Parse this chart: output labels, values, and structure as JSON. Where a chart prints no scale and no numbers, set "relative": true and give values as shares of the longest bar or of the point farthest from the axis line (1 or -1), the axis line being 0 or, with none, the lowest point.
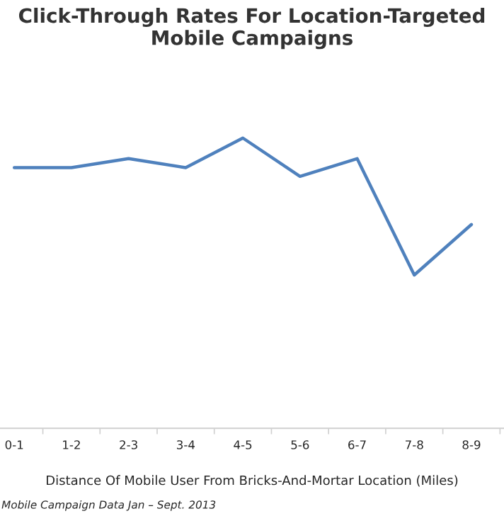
{
  "chart_data": {
    "type": "line",
    "title": "Click-Through Rates For Location-Targeted\nMobile Campaigns",
    "xlabel": "Distance Of Mobile User From Bricks-And-Mortar Location (Miles)",
    "categories": [
      "0-1",
      "1-2",
      "2-3",
      "3-4",
      "4-5",
      "5-6",
      "6-7",
      "7-8",
      "8-9"
    ],
    "series": [
      {
        "color": "#4f81bd",
        "values": [
          0.898,
          0.898,
          0.929,
          0.898,
          1,
          0.868,
          0.929,
          0.528,
          0.702
        ]
      }
    ],
    "relative": true,
    "marker": "none",
    "line_style": "solid",
    "annotations": [
      "Mobile Campaign Data Jan – Sept. 2013"
    ]
  }
}
